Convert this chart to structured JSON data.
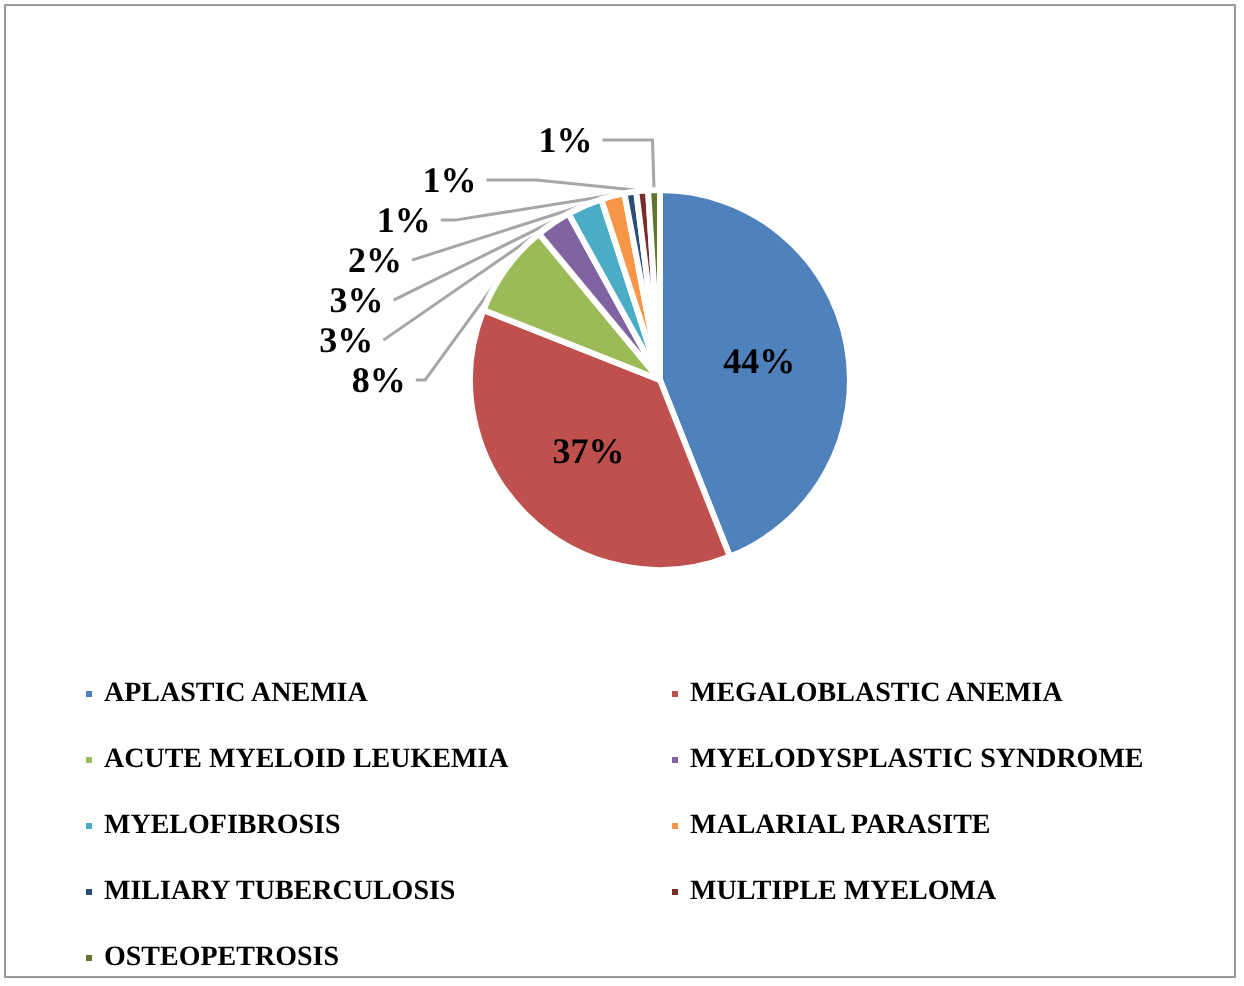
{
  "chart_data": {
    "type": "pie",
    "categories": [
      "APLASTIC ANEMIA",
      "MEGALOBLASTIC ANEMIA",
      "ACUTE MYELOID LEUKEMIA",
      "MYELODYSPLASTIC SYNDROME",
      "MYELOFIBROSIS",
      "MALARIAL PARASITE",
      "MILIARY TUBERCULOSIS",
      "MULTIPLE MYELOMA",
      "OSTEOPETROSIS"
    ],
    "values": [
      44,
      37,
      8,
      3,
      3,
      2,
      1,
      1,
      1
    ],
    "colors": [
      "#4f81bd",
      "#c0504d",
      "#9bbb59",
      "#8064a2",
      "#4bacc6",
      "#f79646",
      "#2c4d75",
      "#772c2a",
      "#5f7530"
    ],
    "value_labels": [
      "44%",
      "37%",
      "8%",
      "3%",
      "3%",
      "2%",
      "1%",
      "1%",
      "1%"
    ],
    "legend": "bottom"
  }
}
